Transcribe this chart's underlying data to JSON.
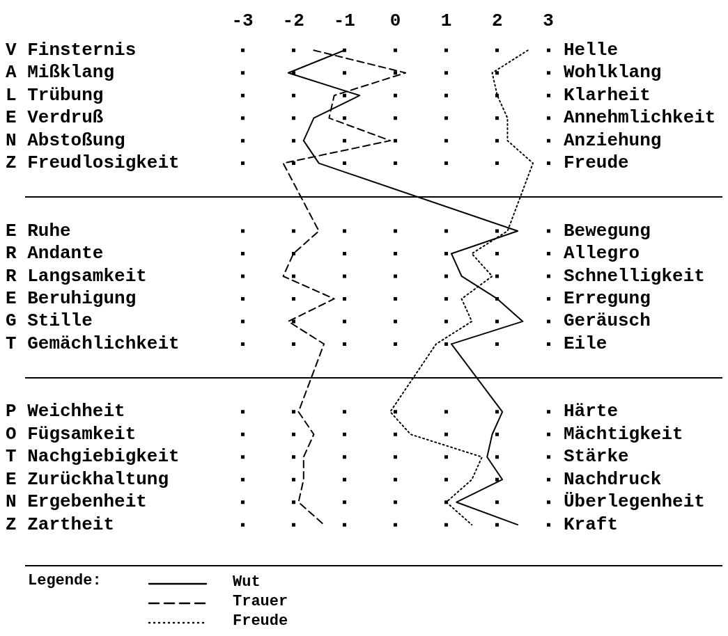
{
  "chart_data": {
    "type": "line",
    "orientation": "horizontal",
    "xlim": [
      -3,
      3
    ],
    "xticks": [
      -3,
      -2,
      -1,
      0,
      1,
      2,
      3
    ],
    "grid": true,
    "marker": "none",
    "legend": "bottom left",
    "legend_title": "Legende:",
    "categories": [
      "V Finsternis",
      "A Mißklang",
      "L Trübung",
      "E Verdruß",
      "N Abstoßung",
      "Z Freudlosigkeit",
      null,
      null,
      "E Ruhe",
      "R Andante",
      "R Langsamkeit",
      "E Beruhigung",
      "G Stille",
      "T Gemächlichkeit",
      null,
      null,
      "P Weichheit",
      "O Fügsamkeit",
      "T Nachgiebigkeit",
      "E Zurückhaltung",
      "N Ergebenheit",
      "Z Zartheit"
    ],
    "y2_categories": [
      "Helle",
      "Wohlklang",
      "Klarheit",
      "Annehmlichkeit",
      "Anziehung",
      "Freude",
      null,
      null,
      "Bewegung",
      "Allegro",
      "Schnelligkeit",
      "Erregung",
      "Geräusch",
      "Eile",
      null,
      null,
      "Härte",
      "Mächtigkeit",
      "Stärke",
      "Nachdruck",
      "Überlegenheit",
      "Kraft"
    ],
    "series": [
      {
        "name": "Wut",
        "color": "#000000",
        "line_style": "solid",
        "values": [
          -1.0,
          -2.1,
          -0.7,
          -1.6,
          -1.8,
          -1.5,
          null,
          null,
          2.4,
          1.1,
          1.3,
          2.0,
          2.5,
          1.1,
          null,
          null,
          2.1,
          1.9,
          1.8,
          2.1,
          1.2,
          2.4
        ]
      },
      {
        "name": "Trauer",
        "color": "#000000",
        "line_style": "dashed",
        "values": [
          -1.6,
          0.2,
          -1.2,
          -1.3,
          -0.1,
          -2.2,
          null,
          null,
          -1.5,
          -2.0,
          -2.2,
          -1.2,
          -2.1,
          -1.4,
          null,
          null,
          -1.9,
          -1.6,
          -1.8,
          -1.8,
          -1.9,
          -1.4
        ]
      },
      {
        "name": "Freude",
        "color": "#000000",
        "line_style": "dotted",
        "values": [
          2.6,
          1.9,
          2.0,
          2.2,
          2.2,
          2.7,
          null,
          null,
          2.2,
          1.5,
          1.9,
          1.3,
          1.5,
          0.8,
          null,
          null,
          -0.1,
          0.3,
          1.7,
          1.5,
          1.0,
          1.5
        ]
      }
    ]
  }
}
